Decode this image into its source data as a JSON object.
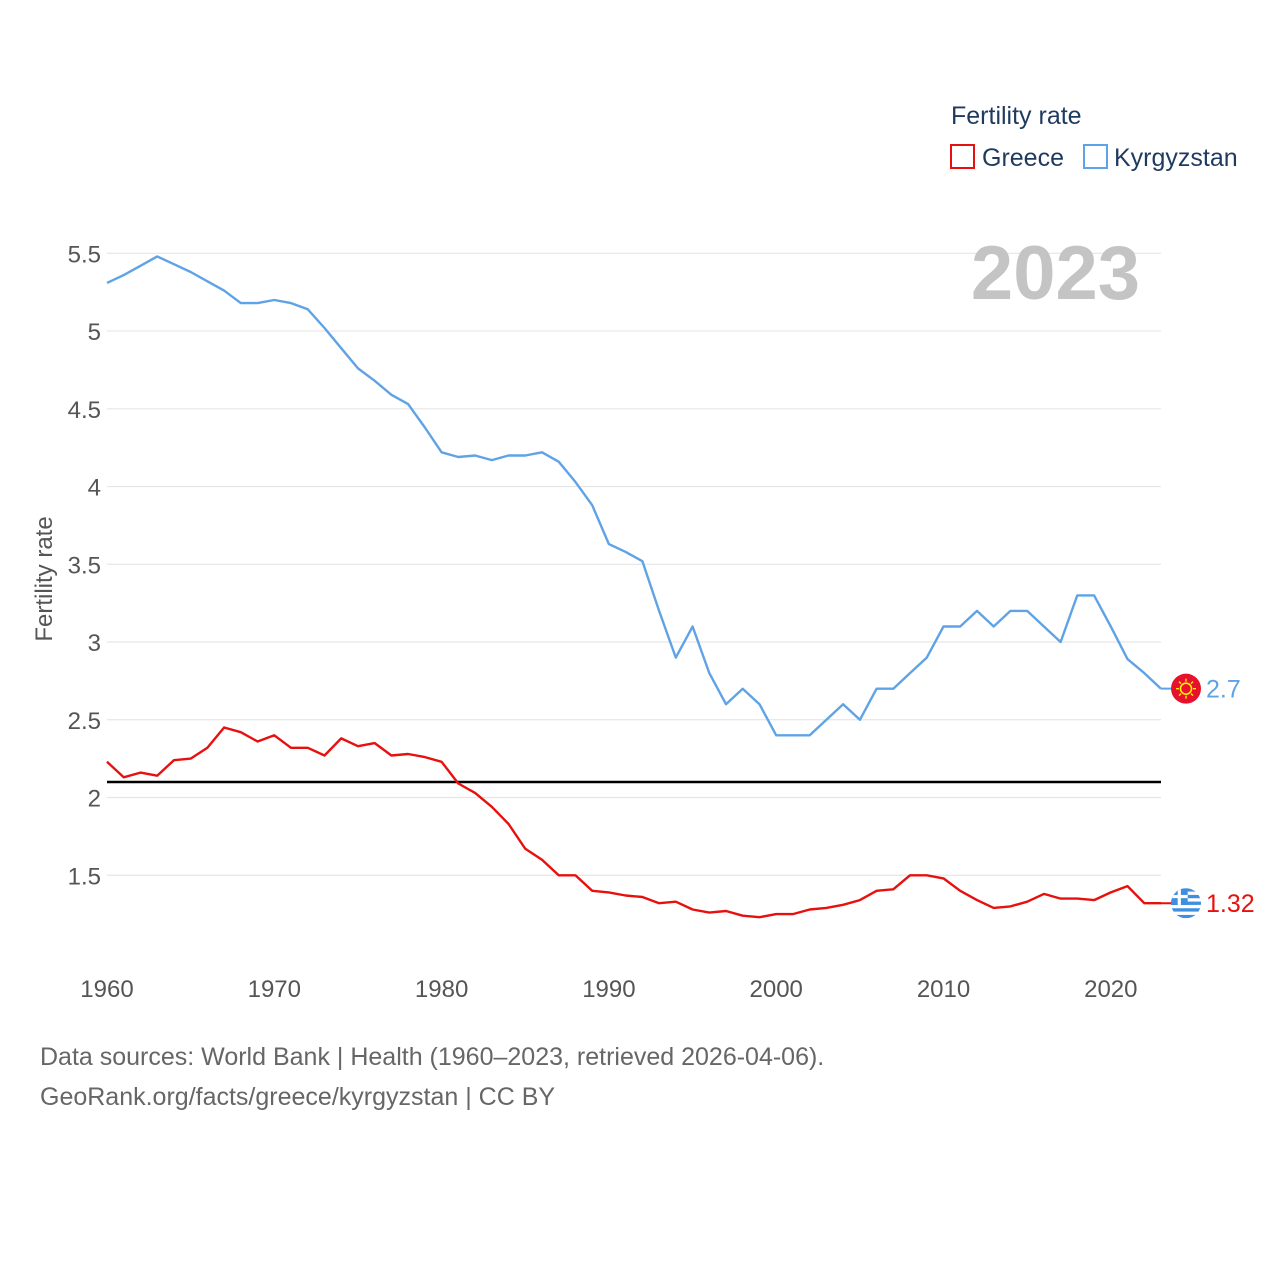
{
  "chart_data": {
    "type": "line",
    "title": "Fertility rate",
    "ylabel": "Fertility rate",
    "xlabel": "",
    "year_label": "2023",
    "xlim": [
      1960,
      2023
    ],
    "ylim": [
      1.0,
      5.65
    ],
    "x_ticks": [
      1960,
      1970,
      1980,
      1990,
      2000,
      2010,
      2020
    ],
    "y_ticks": [
      1.5,
      2,
      2.5,
      3,
      3.5,
      4,
      4.5,
      5,
      5.5
    ],
    "grid": true,
    "legend_position": "top-right",
    "reference_line": 2.1,
    "x": [
      1960,
      1961,
      1962,
      1963,
      1964,
      1965,
      1966,
      1967,
      1968,
      1969,
      1970,
      1971,
      1972,
      1973,
      1974,
      1975,
      1976,
      1977,
      1978,
      1979,
      1980,
      1981,
      1982,
      1983,
      1984,
      1985,
      1986,
      1987,
      1988,
      1989,
      1990,
      1991,
      1992,
      1993,
      1994,
      1995,
      1996,
      1997,
      1998,
      1999,
      2000,
      2001,
      2002,
      2003,
      2004,
      2005,
      2006,
      2007,
      2008,
      2009,
      2010,
      2011,
      2012,
      2013,
      2014,
      2015,
      2016,
      2017,
      2018,
      2019,
      2020,
      2021,
      2022,
      2023
    ],
    "series": [
      {
        "name": "Greece",
        "color": "#e8100f",
        "end_label": "1.32",
        "flag": "greece-flag-icon",
        "values": [
          2.23,
          2.13,
          2.16,
          2.14,
          2.24,
          2.25,
          2.32,
          2.45,
          2.42,
          2.36,
          2.4,
          2.32,
          2.32,
          2.27,
          2.38,
          2.33,
          2.35,
          2.27,
          2.28,
          2.26,
          2.23,
          2.09,
          2.03,
          1.94,
          1.83,
          1.67,
          1.6,
          1.5,
          1.5,
          1.4,
          1.39,
          1.37,
          1.36,
          1.32,
          1.33,
          1.28,
          1.26,
          1.27,
          1.24,
          1.23,
          1.25,
          1.25,
          1.28,
          1.29,
          1.31,
          1.34,
          1.4,
          1.41,
          1.5,
          1.5,
          1.48,
          1.4,
          1.34,
          1.29,
          1.3,
          1.33,
          1.38,
          1.35,
          1.35,
          1.34,
          1.39,
          1.43,
          1.32,
          1.32
        ]
      },
      {
        "name": "Kyrgyzstan",
        "color": "#5fa3e6",
        "end_label": "2.7",
        "flag": "kyrgyzstan-flag-icon",
        "values": [
          5.31,
          5.36,
          5.42,
          5.48,
          5.43,
          5.38,
          5.32,
          5.26,
          5.18,
          5.18,
          5.2,
          5.18,
          5.14,
          5.02,
          4.89,
          4.76,
          4.68,
          4.59,
          4.53,
          4.38,
          4.22,
          4.19,
          4.2,
          4.17,
          4.2,
          4.2,
          4.22,
          4.16,
          4.03,
          3.88,
          3.63,
          3.58,
          3.52,
          3.2,
          2.9,
          3.1,
          2.8,
          2.6,
          2.7,
          2.6,
          2.4,
          2.4,
          2.4,
          2.5,
          2.6,
          2.5,
          2.7,
          2.7,
          2.8,
          2.9,
          3.1,
          3.1,
          3.2,
          3.1,
          3.2,
          3.2,
          3.1,
          3.0,
          3.3,
          3.3,
          3.1,
          2.89,
          2.8,
          2.7
        ]
      }
    ]
  },
  "footer": {
    "line1": "Data sources: World Bank | Health (1960–2023, retrieved 2026-04-06).",
    "line2": "GeoRank.org/facts/greece/kyrgyzstan | CC BY"
  }
}
